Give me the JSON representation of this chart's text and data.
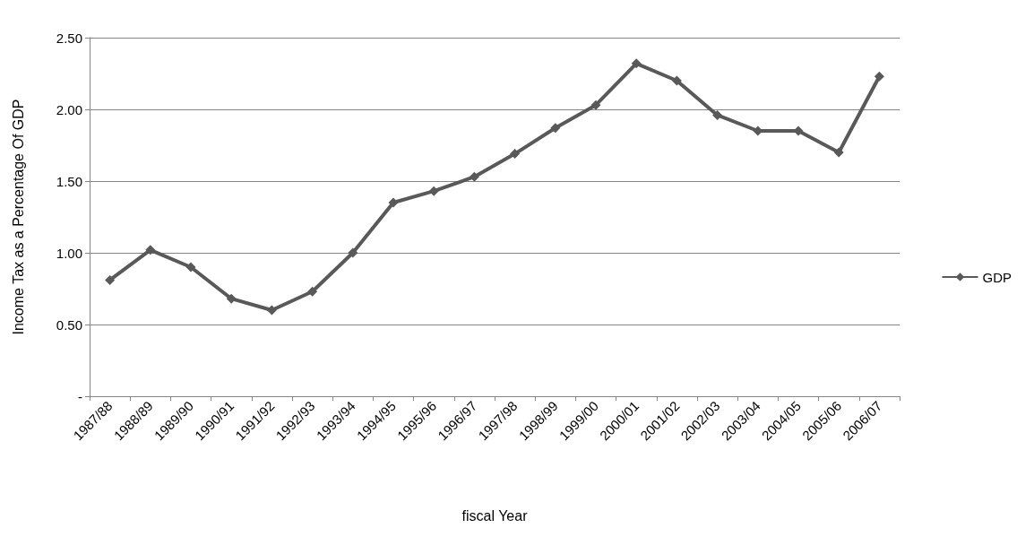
{
  "chart_data": {
    "type": "line",
    "xlabel": "fiscal Year",
    "ylabel": "Income Tax as a Percentage Of GDP",
    "categories": [
      "1987/88",
      "1988/89",
      "1989/90",
      "1990/91",
      "1991/92",
      "1992/93",
      "1993/94",
      "1994/95",
      "1995/96",
      "1996/97",
      "1997/98",
      "1998/99",
      "1999/00",
      "2000/01",
      "2001/02",
      "2002/03",
      "2003/04",
      "2004/05",
      "2005/06",
      "2006/07"
    ],
    "series": [
      {
        "name": "GDP",
        "color": "#595959",
        "values": [
          0.81,
          1.02,
          0.9,
          0.68,
          0.6,
          0.73,
          1.0,
          1.35,
          1.43,
          1.53,
          1.69,
          1.87,
          2.03,
          2.32,
          2.2,
          1.96,
          1.85,
          1.85,
          1.7,
          2.23
        ]
      }
    ],
    "ylim": [
      0,
      2.5
    ],
    "yticks": [
      {
        "value": 0,
        "label": "-"
      },
      {
        "value": 0.5,
        "label": "0.50"
      },
      {
        "value": 1,
        "label": "1.00"
      },
      {
        "value": 1.5,
        "label": "1.50"
      },
      {
        "value": 2,
        "label": "2.00"
      },
      {
        "value": 2.5,
        "label": "2.50"
      }
    ],
    "grid": "y",
    "legend": "right",
    "marker": "diamond",
    "line_style": "solid"
  }
}
